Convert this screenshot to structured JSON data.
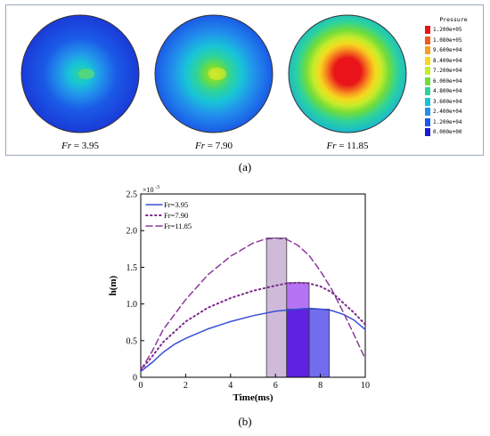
{
  "panel_a": {
    "caption": "(a)",
    "discs": [
      {
        "fr_label": "Fr = 3.95",
        "fr_prefix": "Fr",
        "fr_value": "= 3.95"
      },
      {
        "fr_label": "Fr = 7.90",
        "fr_prefix": "Fr",
        "fr_value": "= 7.90"
      },
      {
        "fr_label": "Fr = 11.85",
        "fr_prefix": "Fr",
        "fr_value": "= 11.85"
      }
    ],
    "legend": {
      "title": "Pressure",
      "entries": [
        {
          "label": "1.200e+05",
          "color": "#e8141a"
        },
        {
          "label": "1.080e+05",
          "color": "#f25a1c"
        },
        {
          "label": "9.600e+04",
          "color": "#f8a020"
        },
        {
          "label": "8.400e+04",
          "color": "#f5d91e"
        },
        {
          "label": "7.200e+04",
          "color": "#c8ec2a"
        },
        {
          "label": "6.000e+04",
          "color": "#72dc3a"
        },
        {
          "label": "4.800e+04",
          "color": "#2ed39a"
        },
        {
          "label": "3.600e+04",
          "color": "#18c4d8"
        },
        {
          "label": "2.400e+04",
          "color": "#2290ec"
        },
        {
          "label": "1.200e+04",
          "color": "#1a5ae6"
        },
        {
          "label": "0.000e+00",
          "color": "#1a1ad2"
        }
      ]
    }
  },
  "panel_b": {
    "caption": "(b)"
  },
  "chart_data": {
    "type": "line",
    "xlabel": "Time(ms)",
    "ylabel": "h(m)",
    "y_multiplier": "×10",
    "y_multiplier_exp": "-3",
    "xlim": [
      0,
      10
    ],
    "ylim": [
      0,
      2.5
    ],
    "x_ticks": [
      0,
      2,
      4,
      6,
      8,
      10
    ],
    "y_ticks": [
      "0",
      "0.5",
      "1.0",
      "1.5",
      "2.0",
      "2.5"
    ],
    "legend_position": "top-left",
    "series": [
      {
        "name": "Fr=3.95",
        "color": "#3a4fd8",
        "dash": "solid",
        "x": [
          0,
          0.5,
          1,
          1.5,
          2,
          3,
          4,
          5,
          6,
          7,
          7.5,
          8,
          8.5,
          9,
          9.5,
          10
        ],
        "y": [
          0.08,
          0.2,
          0.34,
          0.45,
          0.53,
          0.66,
          0.76,
          0.84,
          0.9,
          0.93,
          0.94,
          0.93,
          0.91,
          0.86,
          0.78,
          0.65
        ]
      },
      {
        "name": "Fr=7.90",
        "color": "#7a2a8a",
        "dash": "dot",
        "x": [
          0,
          0.5,
          1,
          2,
          3,
          4,
          5,
          6,
          6.5,
          7,
          7.5,
          8,
          8.5,
          9,
          9.5,
          10
        ],
        "y": [
          0.1,
          0.28,
          0.48,
          0.76,
          0.95,
          1.08,
          1.18,
          1.25,
          1.28,
          1.29,
          1.28,
          1.24,
          1.16,
          1.02,
          0.88,
          0.72
        ]
      },
      {
        "name": "Fr=11.85",
        "color": "#8a3a9a",
        "dash": "dash",
        "x": [
          0,
          0.5,
          1,
          2,
          3,
          4,
          5,
          5.5,
          6,
          6.5,
          7,
          7.5,
          8,
          8.5,
          9,
          9.5,
          10
        ],
        "y": [
          0.1,
          0.35,
          0.65,
          1.06,
          1.4,
          1.65,
          1.83,
          1.88,
          1.9,
          1.88,
          1.8,
          1.66,
          1.45,
          1.2,
          0.9,
          0.58,
          0.25
        ]
      }
    ],
    "bars": [
      {
        "x0": 5.6,
        "x1": 6.5,
        "height": 1.9,
        "color": "#cdb8d8"
      },
      {
        "x0": 6.5,
        "x1": 7.5,
        "height": 1.29,
        "color": "#b06cf2"
      },
      {
        "x0": 6.5,
        "x1": 7.5,
        "height": 0.93,
        "color": "#5a1ee0"
      },
      {
        "x0": 7.5,
        "x1": 8.4,
        "height": 0.93,
        "color": "#6a66ee"
      }
    ]
  }
}
